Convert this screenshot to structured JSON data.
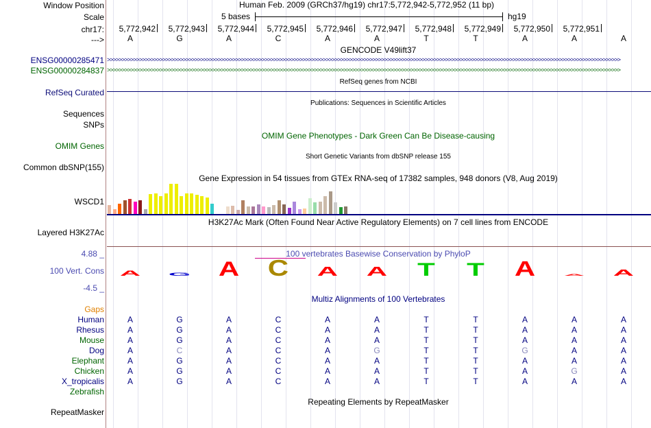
{
  "side_labels": {
    "window_position": "Window Position",
    "scale": "Scale",
    "chrom": "chr17:",
    "strand": "--->",
    "gene1": "ENSG00000285471",
    "gene2": "ENSG00000284837",
    "refseq": "RefSeq Curated",
    "sequences": "Sequences",
    "snps": "SNPs",
    "omim": "OMIM Genes",
    "dbsnp": "Common dbSNP(155)",
    "gtex": "WSCD1",
    "h3k27ac": "Layered H3K27Ac",
    "cons_max": "4.88 _",
    "cons": "100 Vert. Cons",
    "cons_min": "-4.5 _",
    "gaps": "Gaps",
    "species": [
      "Human",
      "Rhesus",
      "Mouse",
      "Dog",
      "Elephant",
      "Chicken",
      "X_tropicalis",
      "Zebrafish"
    ],
    "repeatmasker": "RepeatMasker"
  },
  "colors": {
    "gencode_blue": "#000080",
    "gencode_green": "#006400",
    "refseq": "#0c0c78",
    "omim": "#006400",
    "cons": "#4a4ab0",
    "gaps": "#e08000",
    "species_colors": [
      "#000080",
      "#000080",
      "#006400",
      "#000080",
      "#006400",
      "#006400",
      "#000080",
      "#006400"
    ]
  },
  "header": {
    "position_text": "Human Feb. 2009 (GRCh37/hg19)   chr17:5,772,942-5,772,952 (11 bp)",
    "scale_text": "5 bases",
    "assembly": "hg19",
    "coords": [
      "5,772,942",
      "5,772,943",
      "5,772,944",
      "5,772,945",
      "5,772,946",
      "5,772,947",
      "5,772,948",
      "5,772,949",
      "5,772,950",
      "5,772,951"
    ],
    "bases": [
      "A",
      "G",
      "A",
      "C",
      "A",
      "A",
      "T",
      "T",
      "A",
      "A",
      "A"
    ]
  },
  "tracks": {
    "gencode": "GENCODE V49lift37",
    "gene1_strand": ">>>>>>>>>>>>>>>>>>>>>>>>>>>>>>>>>>>>>>>>>>>>>>>>>>>>>>>>>>>>>>>>>>>>>>>>>>>>>>>>>>>>>>>>>>>>>>>>>>>>>>>>>>>>>>>>>>>>>>>>>>>>>>>>>>>>>>>>>>>>>>>>>>>>>>>>>>>>>>>>>>>>>>>>>>>>>>>>",
    "gene2_strand": ">>>>>>>>>>>>>>>>>>>>>>>>>>>>>>>>>>>>>>>>>>>>>>>>>>>>>>>>>>>>>>>>>>>>>>>>>>>>>>>>>>>>>>>>>>>>>>>>>>>>>>>>>>>>>>>>>>>>>>>>>>>>>>>>>>>>>>>>>>>>>>>>>>>>>>>>>>>>>>>>>>>>>>>>>>>>>>>>",
    "refseq": "RefSeq genes from NCBI",
    "publications": "Publications: Sequences in Scientific Articles",
    "omim": "OMIM Gene Phenotypes - Dark Green Can Be Disease-causing",
    "dbsnp": "Short Genetic Variants from dbSNP release 155",
    "gtex": "Gene Expression in 54 tissues from GTEx RNA-seq of 17382 samples, 948 donors (V8, Aug 2019)",
    "h3k27ac": "H3K27Ac Mark (Often Found Near Active Regulatory Elements) on 7 cell lines from ENCODE",
    "cons": "100 vertebrates Basewise Conservation by PhyloP",
    "multiz": "Multiz Alignments of 100 Vertebrates",
    "repeatmasker": "Repeating Elements by RepeatMasker"
  },
  "gtex_bars": [
    {
      "v": 0.3,
      "c": "#e6b8a2"
    },
    {
      "v": 0.15,
      "c": "#ffaa88"
    },
    {
      "v": 0.35,
      "c": "#ff6600"
    },
    {
      "v": 0.45,
      "c": "#a0522d"
    },
    {
      "v": 0.5,
      "c": "#cc3333"
    },
    {
      "v": 0.4,
      "c": "#ff00bb"
    },
    {
      "v": 0.45,
      "c": "#8b1a1a"
    },
    {
      "v": 0.15,
      "c": "#aaaaaa"
    },
    {
      "v": 0.65,
      "c": "#eeee00"
    },
    {
      "v": 0.68,
      "c": "#eeee00"
    },
    {
      "v": 0.6,
      "c": "#eeee00"
    },
    {
      "v": 0.68,
      "c": "#eeee00"
    },
    {
      "v": 1.0,
      "c": "#eeee00"
    },
    {
      "v": 1.0,
      "c": "#eeee00"
    },
    {
      "v": 0.6,
      "c": "#eeee00"
    },
    {
      "v": 0.68,
      "c": "#eeee00"
    },
    {
      "v": 0.68,
      "c": "#eeee00"
    },
    {
      "v": 0.64,
      "c": "#eeee00"
    },
    {
      "v": 0.58,
      "c": "#eeee00"
    },
    {
      "v": 0.55,
      "c": "#eeee00"
    },
    {
      "v": 0.35,
      "c": "#33cccc"
    },
    {
      "v": 0.0,
      "c": "#ffffff"
    },
    {
      "v": 0.0,
      "c": "#ffffff"
    },
    {
      "v": 0.25,
      "c": "#eeddcc"
    },
    {
      "v": 0.28,
      "c": "#ddbbaa"
    },
    {
      "v": 0.14,
      "c": "#ccaaaa"
    },
    {
      "v": 0.45,
      "c": "#b08060"
    },
    {
      "v": 0.25,
      "c": "#ccbbaa"
    },
    {
      "v": 0.25,
      "c": "#aa7799"
    },
    {
      "v": 0.32,
      "c": "#aa88bb"
    },
    {
      "v": 0.25,
      "c": "#ff99cc"
    },
    {
      "v": 0.22,
      "c": "#bbbbbb"
    },
    {
      "v": 0.3,
      "c": "#ccbbaa"
    },
    {
      "v": 0.45,
      "c": "#b09070"
    },
    {
      "v": 0.32,
      "c": "#886655"
    },
    {
      "v": 0.2,
      "c": "#9933cc"
    },
    {
      "v": 0.4,
      "c": "#aa88dd"
    },
    {
      "v": 0.15,
      "c": "#cc99ee"
    },
    {
      "v": 0.18,
      "c": "#ffcc99"
    },
    {
      "v": 0.52,
      "c": "#cceecc"
    },
    {
      "v": 0.38,
      "c": "#99ddaa"
    },
    {
      "v": 0.42,
      "c": "#ccbbaa"
    },
    {
      "v": 0.6,
      "c": "#ccbbaa"
    },
    {
      "v": 0.75,
      "c": "#aa9988"
    },
    {
      "v": 0.38,
      "c": "#cccccc"
    },
    {
      "v": 0.22,
      "c": "#229933"
    },
    {
      "v": 0.25,
      "c": "#887766"
    },
    {
      "v": 0.0,
      "c": "#ffffff"
    }
  ],
  "conservation": [
    {
      "base": "A",
      "h": 0.3,
      "c": "#ff0000"
    },
    {
      "base": "G",
      "h": 0.18,
      "c": "#0000cc"
    },
    {
      "base": "A",
      "h": 0.85,
      "c": "#ff0000"
    },
    {
      "base": "C",
      "h": 0.95,
      "c": "#aa8800"
    },
    {
      "base": "A",
      "h": 0.55,
      "c": "#ff0000"
    },
    {
      "base": "A",
      "h": 0.55,
      "c": "#ff0000"
    },
    {
      "base": "T",
      "h": 0.75,
      "c": "#00cc00"
    },
    {
      "base": "T",
      "h": 0.75,
      "c": "#00cc00"
    },
    {
      "base": "A",
      "h": 0.9,
      "c": "#ff0000"
    },
    {
      "base": "A",
      "h": 0.12,
      "c": "#ff0000"
    },
    {
      "base": "A",
      "h": 0.4,
      "c": "#ff0000"
    }
  ],
  "alignments": [
    [
      "A",
      "G",
      "A",
      "C",
      "A",
      "A",
      "T",
      "T",
      "A",
      "A",
      "A"
    ],
    [
      "A",
      "G",
      "A",
      "C",
      "A",
      "A",
      "T",
      "T",
      "A",
      "A",
      "A"
    ],
    [
      "A",
      "G",
      "A",
      "C",
      "A",
      "A",
      "T",
      "T",
      "A",
      "A",
      "A"
    ],
    [
      "A",
      "C",
      "A",
      "C",
      "A",
      "G",
      "T",
      "T",
      "G",
      "A",
      "A"
    ],
    [
      "A",
      "G",
      "A",
      "C",
      "A",
      "A",
      "T",
      "T",
      "A",
      "A",
      "A"
    ],
    [
      "A",
      "G",
      "A",
      "C",
      "A",
      "A",
      "T",
      "T",
      "A",
      "G",
      "A"
    ],
    [
      "A",
      "G",
      "A",
      "C",
      "A",
      "A",
      "T",
      "T",
      "A",
      "A",
      "A"
    ]
  ],
  "mismatch_color": "#8888bb",
  "base_color": "#000080"
}
